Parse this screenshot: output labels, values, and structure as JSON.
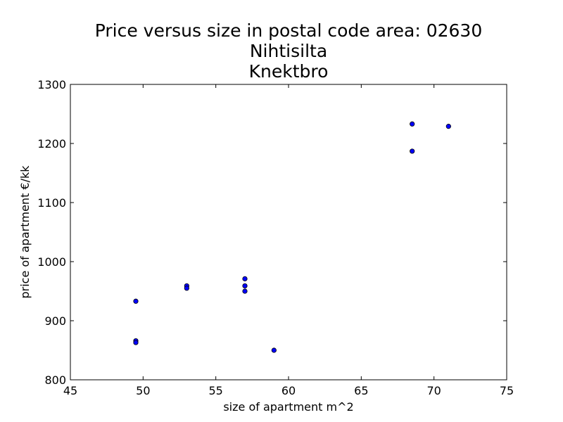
{
  "chart_data": {
    "type": "scatter",
    "title_lines": [
      "Price versus size in postal code area: 02630",
      "Nihtisilta",
      "Knektbro"
    ],
    "xlabel": "size of apartment m^2",
    "ylabel": "price of apartment €/kk",
    "xlim": [
      45,
      75
    ],
    "ylim": [
      800,
      1300
    ],
    "xticks": [
      45,
      50,
      55,
      60,
      65,
      70,
      75
    ],
    "yticks": [
      800,
      900,
      1000,
      1100,
      1200,
      1300
    ],
    "grid": false,
    "marker_color": "#0000ff",
    "marker_edge_color": "#000000",
    "points": [
      {
        "x": 49.5,
        "y": 933
      },
      {
        "x": 49.5,
        "y": 866
      },
      {
        "x": 49.5,
        "y": 863
      },
      {
        "x": 53.0,
        "y": 959
      },
      {
        "x": 53.0,
        "y": 955
      },
      {
        "x": 57.0,
        "y": 971
      },
      {
        "x": 57.0,
        "y": 959
      },
      {
        "x": 57.0,
        "y": 950
      },
      {
        "x": 59.0,
        "y": 850
      },
      {
        "x": 68.5,
        "y": 1233
      },
      {
        "x": 68.5,
        "y": 1187
      },
      {
        "x": 71.0,
        "y": 1229
      }
    ]
  }
}
